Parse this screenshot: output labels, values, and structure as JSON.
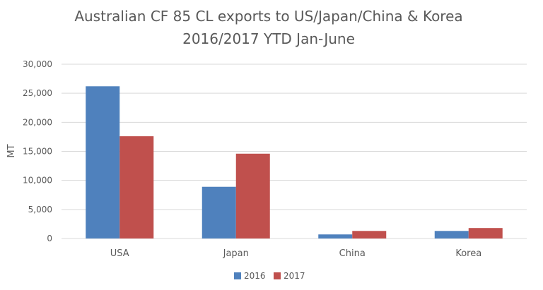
{
  "chart_data": {
    "type": "bar",
    "title_lines": [
      "Australian CF 85 CL exports to US/Japan/China & Korea",
      "2016/2017 YTD Jan-June"
    ],
    "xlabel": "",
    "ylabel": "MT",
    "ylim": [
      0,
      30000
    ],
    "yticks": [
      "0",
      "5,000",
      "10,000",
      "15,000",
      "20,000",
      "25,000",
      "30,000"
    ],
    "ytick_values": [
      0,
      5000,
      10000,
      15000,
      20000,
      25000,
      30000
    ],
    "grid": true,
    "legend_position": "bottom",
    "categories": [
      "USA",
      "Japan",
      "China",
      "Korea"
    ],
    "series": [
      {
        "name": "2016",
        "color": "#4f81bd",
        "values": [
          26200,
          8900,
          700,
          1300
        ]
      },
      {
        "name": "2017",
        "color": "#c0504d",
        "values": [
          17600,
          14600,
          1300,
          1800
        ]
      }
    ]
  }
}
